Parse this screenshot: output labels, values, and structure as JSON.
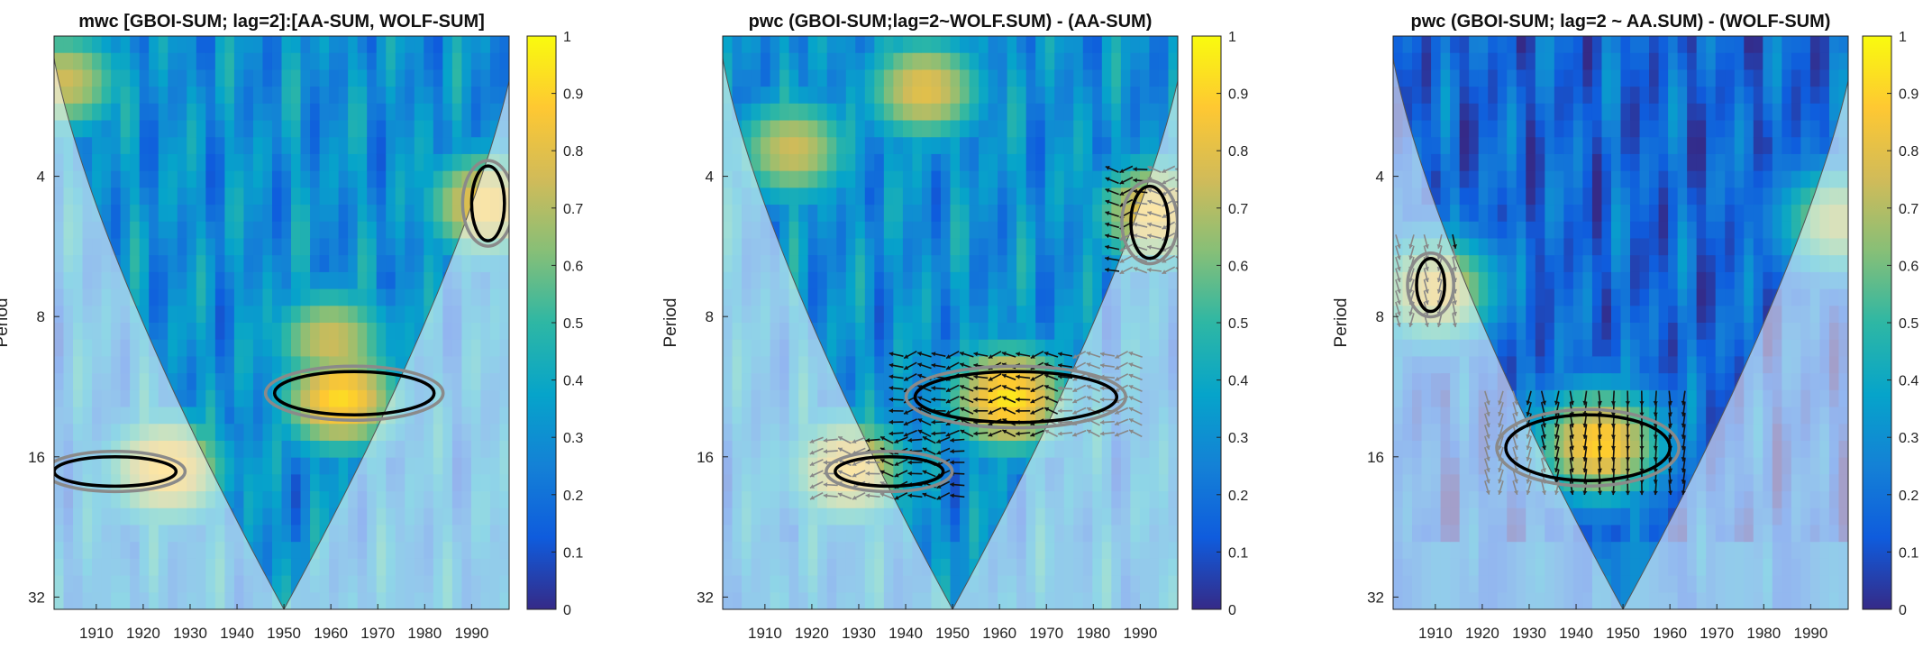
{
  "colors": {
    "colormap": [
      "#352a87",
      "#0f5cdd",
      "#1481d6",
      "#06a4ca",
      "#2eb7a4",
      "#87bf77",
      "#d1bb59",
      "#fec832",
      "#f9fb0e"
    ],
    "sig_contour": "#000000",
    "coi_contour": "#8a8a8a",
    "coi_mask": "rgba(255,255,255,0.55)",
    "arrow_sig": "#111111",
    "arrow_coi": "#888888"
  },
  "chart_data": [
    {
      "type": "heatmap",
      "title": "mwc [GBOI-SUM; lag=2]:[AA-SUM, WOLF-SUM]",
      "xlabel": "",
      "ylabel": "Period",
      "x_range": [
        1901,
        1998
      ],
      "x_ticks": [
        1910,
        1920,
        1930,
        1940,
        1950,
        1960,
        1970,
        1980,
        1990
      ],
      "y_scale": "log2",
      "y_range": [
        2,
        34
      ],
      "y_ticks": [
        4,
        8,
        16,
        32
      ],
      "color_range": [
        0,
        1
      ],
      "colorbar_ticks": [
        "0",
        "0.1",
        "0.2",
        "0.3",
        "0.4",
        "0.5",
        "0.6",
        "0.7",
        "0.8",
        "0.9",
        "1"
      ],
      "arrows": false,
      "cone_of_influence": true,
      "coherence_hotspots": [
        {
          "year": 1962,
          "period": 12,
          "value": 0.92
        },
        {
          "year": 1925,
          "period": 17,
          "value": 0.88
        },
        {
          "year": 1993,
          "period": 4.6,
          "value": 0.85
        },
        {
          "year": 1960,
          "period": 9,
          "value": 0.75
        },
        {
          "year": 1903,
          "period": 2.5,
          "value": 0.75
        }
      ],
      "significant_regions": [
        {
          "year_range": [
            1948,
            1982
          ],
          "period_range": [
            10.5,
            13
          ]
        },
        {
          "year_range": [
            1901,
            1927
          ],
          "period_range": [
            16,
            18.5
          ]
        },
        {
          "year_range": [
            1990,
            1997
          ],
          "period_range": [
            3.8,
            5.5
          ]
        }
      ]
    },
    {
      "type": "heatmap",
      "title": "pwc (GBOI-SUM;lag=2~WOLF.SUM) - (AA-SUM)",
      "xlabel": "",
      "ylabel": "Period",
      "x_range": [
        1901,
        1998
      ],
      "x_ticks": [
        1910,
        1920,
        1930,
        1940,
        1950,
        1960,
        1970,
        1980,
        1990
      ],
      "y_scale": "log2",
      "y_range": [
        2,
        34
      ],
      "y_ticks": [
        4,
        8,
        16,
        32
      ],
      "color_range": [
        0,
        1
      ],
      "colorbar_ticks": [
        "0",
        "0.1",
        "0.2",
        "0.3",
        "0.4",
        "0.5",
        "0.6",
        "0.7",
        "0.8",
        "0.9",
        "1"
      ],
      "arrows": true,
      "cone_of_influence": true,
      "coherence_hotspots": [
        {
          "year": 1962,
          "period": 12,
          "value": 0.95
        },
        {
          "year": 1928,
          "period": 17,
          "value": 0.85
        },
        {
          "year": 1993,
          "period": 4.8,
          "value": 0.85
        },
        {
          "year": 1944,
          "period": 2.6,
          "value": 0.8
        },
        {
          "year": 1916,
          "period": 3.5,
          "value": 0.75
        }
      ],
      "significant_regions": [
        {
          "year_range": [
            1942,
            1985
          ],
          "period_range": [
            10.5,
            13.5
          ]
        },
        {
          "year_range": [
            1925,
            1948
          ],
          "period_range": [
            16,
            18.5
          ]
        },
        {
          "year_range": [
            1988,
            1996
          ],
          "period_range": [
            4.2,
            6
          ]
        }
      ]
    },
    {
      "type": "heatmap",
      "title": "pwc (GBOI-SUM; lag=2 ~ AA.SUM) - (WOLF-SUM)",
      "xlabel": "",
      "ylabel": "Period",
      "x_range": [
        1901,
        1998
      ],
      "x_ticks": [
        1910,
        1920,
        1930,
        1940,
        1950,
        1960,
        1970,
        1980,
        1990
      ],
      "y_scale": "log2",
      "y_range": [
        2,
        34
      ],
      "y_ticks": [
        4,
        8,
        16,
        32
      ],
      "color_range": [
        0,
        1
      ],
      "colorbar_ticks": [
        "0",
        "0.1",
        "0.2",
        "0.3",
        "0.4",
        "0.5",
        "0.6",
        "0.7",
        "0.8",
        "0.9",
        "1"
      ],
      "arrows": true,
      "cone_of_influence": true,
      "coherence_hotspots": [
        {
          "year": 1945,
          "period": 15,
          "value": 0.9
        },
        {
          "year": 1910,
          "period": 7,
          "value": 0.8
        },
        {
          "year": 1996,
          "period": 5,
          "value": 0.7
        }
      ],
      "significant_regions": [
        {
          "year_range": [
            1925,
            1960
          ],
          "period_range": [
            13,
            18
          ]
        },
        {
          "year_range": [
            1906,
            1912
          ],
          "period_range": [
            6,
            7.8
          ]
        }
      ]
    }
  ]
}
